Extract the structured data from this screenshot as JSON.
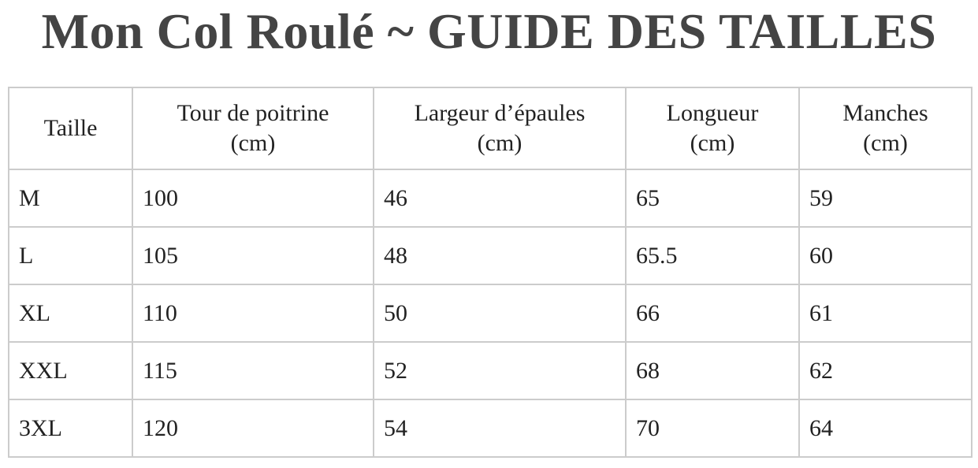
{
  "title": "Mon Col Roulé ~ GUIDE DES TAILLES",
  "table": {
    "headers": [
      {
        "line1": "Taille",
        "line2": ""
      },
      {
        "line1": "Tour de poitrine",
        "line2": "(cm)"
      },
      {
        "line1": "Largeur d’épaules",
        "line2": "(cm)"
      },
      {
        "line1": "Longueur",
        "line2": "(cm)"
      },
      {
        "line1": "Manches",
        "line2": "(cm)"
      }
    ],
    "rows": [
      [
        "M",
        "100",
        "46",
        "65",
        "59"
      ],
      [
        "L",
        "105",
        "48",
        "65.5",
        "60"
      ],
      [
        "XL",
        "110",
        "50",
        "66",
        "61"
      ],
      [
        "XXL",
        "115",
        "52",
        "68",
        "62"
      ],
      [
        "3XL",
        "120",
        "54",
        "70",
        "64"
      ]
    ]
  }
}
